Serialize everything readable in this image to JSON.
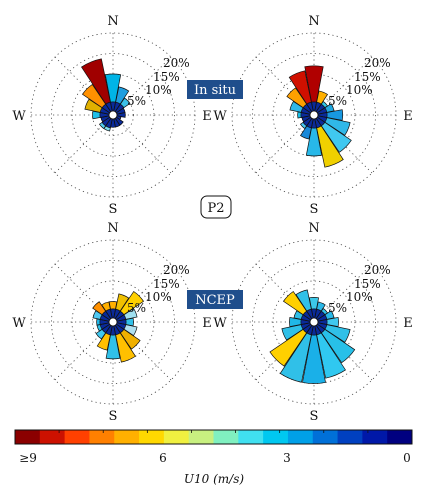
{
  "figure": {
    "group_labels": {
      "top": "In situ",
      "bottom": "NCEP"
    },
    "panel_label": "P2",
    "colors": {
      "badge": "#1f4e8c"
    }
  },
  "chart_data": [
    {
      "type": "wind-rose",
      "group": "In situ",
      "directions": [
        "N",
        "NNE",
        "NE",
        "ENE",
        "E",
        "ESE",
        "SE",
        "SSE",
        "S",
        "SSW",
        "SW",
        "WSW",
        "W",
        "WNW",
        "NW",
        "NNW"
      ],
      "compass": {
        "n": "N",
        "e": "E",
        "s": "S",
        "w": "W"
      },
      "ring_labels": [
        "5%",
        "10%",
        "15%",
        "20%"
      ],
      "rmax": 20,
      "frequencies": [
        10,
        7,
        5,
        3,
        3,
        2,
        3,
        3,
        3,
        4,
        4,
        3,
        5,
        7,
        9,
        14
      ],
      "speed_color": [
        "#00b4e6",
        "#1e9ee0",
        "#3cc0e8",
        "#18c9e0",
        "#40d0e8",
        "#56d6e6",
        "#1ad2f0",
        "#28c8e8",
        "#2fb8e0",
        "#7ee0f0",
        "#54d0f0",
        "#3ac8e8",
        "#20c0e8",
        "#e0b000",
        "#ff9000",
        "#a00000"
      ]
    },
    {
      "type": "wind-rose",
      "group": "In situ",
      "directions": [
        "N",
        "NNE",
        "NE",
        "ENE",
        "E",
        "ESE",
        "SE",
        "SSE",
        "S",
        "SSW",
        "SW",
        "WSW",
        "W",
        "WNW",
        "NW",
        "NNW"
      ],
      "compass": {
        "n": "N",
        "e": "E",
        "s": "S",
        "w": "W"
      },
      "ring_labels": [
        "5%",
        "10%",
        "15%",
        "20%"
      ],
      "rmax": 20,
      "frequencies": [
        12,
        6,
        4,
        5,
        7,
        9,
        11,
        13,
        10,
        6,
        4,
        3,
        4,
        6,
        8,
        11
      ],
      "speed_color": [
        "#b00000",
        "#ffb000",
        "#30c8e8",
        "#20a8e0",
        "#1898e0",
        "#30b8e8",
        "#40c8f0",
        "#f0d000",
        "#28b8e8",
        "#1888d8",
        "#48c8f0",
        "#f0a000",
        "#1ac0e8",
        "#30b8e8",
        "#ffa000",
        "#d01000"
      ]
    },
    {
      "type": "wind-rose",
      "group": "NCEP",
      "directions": [
        "N",
        "NNE",
        "NE",
        "ENE",
        "E",
        "ESE",
        "SE",
        "SSE",
        "S",
        "SSW",
        "SW",
        "WSW",
        "W",
        "WNW",
        "NW",
        "NNW"
      ],
      "compass": {
        "n": "N",
        "e": "E",
        "s": "S",
        "w": "W"
      },
      "ring_labels": [
        "5%",
        "10%",
        "15%",
        "20%"
      ],
      "rmax": 20,
      "frequencies": [
        5,
        7,
        9,
        6,
        5,
        6,
        8,
        10,
        9,
        7,
        5,
        4,
        4,
        5,
        6,
        5
      ],
      "speed_color": [
        "#ffb000",
        "#f0c000",
        "#ffd000",
        "#a0e0f0",
        "#30c0e8",
        "#b0e0f0",
        "#f0b000",
        "#ffc000",
        "#30c0e8",
        "#ffc000",
        "#40c8f0",
        "#30c0e8",
        "#20b8e8",
        "#50c8f0",
        "#ff9000",
        "#ffb000"
      ]
    },
    {
      "type": "wind-rose",
      "group": "NCEP",
      "directions": [
        "N",
        "NNE",
        "NE",
        "ENE",
        "E",
        "ESE",
        "SE",
        "SSE",
        "S",
        "SSW",
        "SW",
        "WSW",
        "W",
        "WNW",
        "NW",
        "NNW"
      ],
      "compass": {
        "n": "N",
        "e": "E",
        "s": "S",
        "w": "W"
      },
      "ring_labels": [
        "5%",
        "10%",
        "15%",
        "20%"
      ],
      "rmax": 20,
      "frequencies": [
        6,
        5,
        4,
        5,
        6,
        9,
        12,
        14,
        15,
        15,
        13,
        8,
        6,
        5,
        9,
        8
      ],
      "speed_color": [
        "#3cc8e8",
        "#2ab8e8",
        "#30c0e8",
        "#28b8e8",
        "#40c8f0",
        "#30c0e8",
        "#28c0e8",
        "#30c8f0",
        "#1ab0e8",
        "#30c0e8",
        "#ffd000",
        "#30c0e8",
        "#20b8e8",
        "#30c0e8",
        "#ffd000",
        "#30c0e8"
      ]
    }
  ],
  "colorbar": {
    "colors": [
      "#8b0000",
      "#cc1100",
      "#ff4000",
      "#ff8000",
      "#ffb000",
      "#ffd800",
      "#f0f040",
      "#c8f080",
      "#80f0c0",
      "#40e0f0",
      "#00c8f0",
      "#00a0e8",
      "#0070d8",
      "#0040c0",
      "#0018a8",
      "#000080"
    ],
    "ticks": [
      "≥9",
      "6",
      "3",
      "0"
    ],
    "label": "U10 (m/s)"
  }
}
